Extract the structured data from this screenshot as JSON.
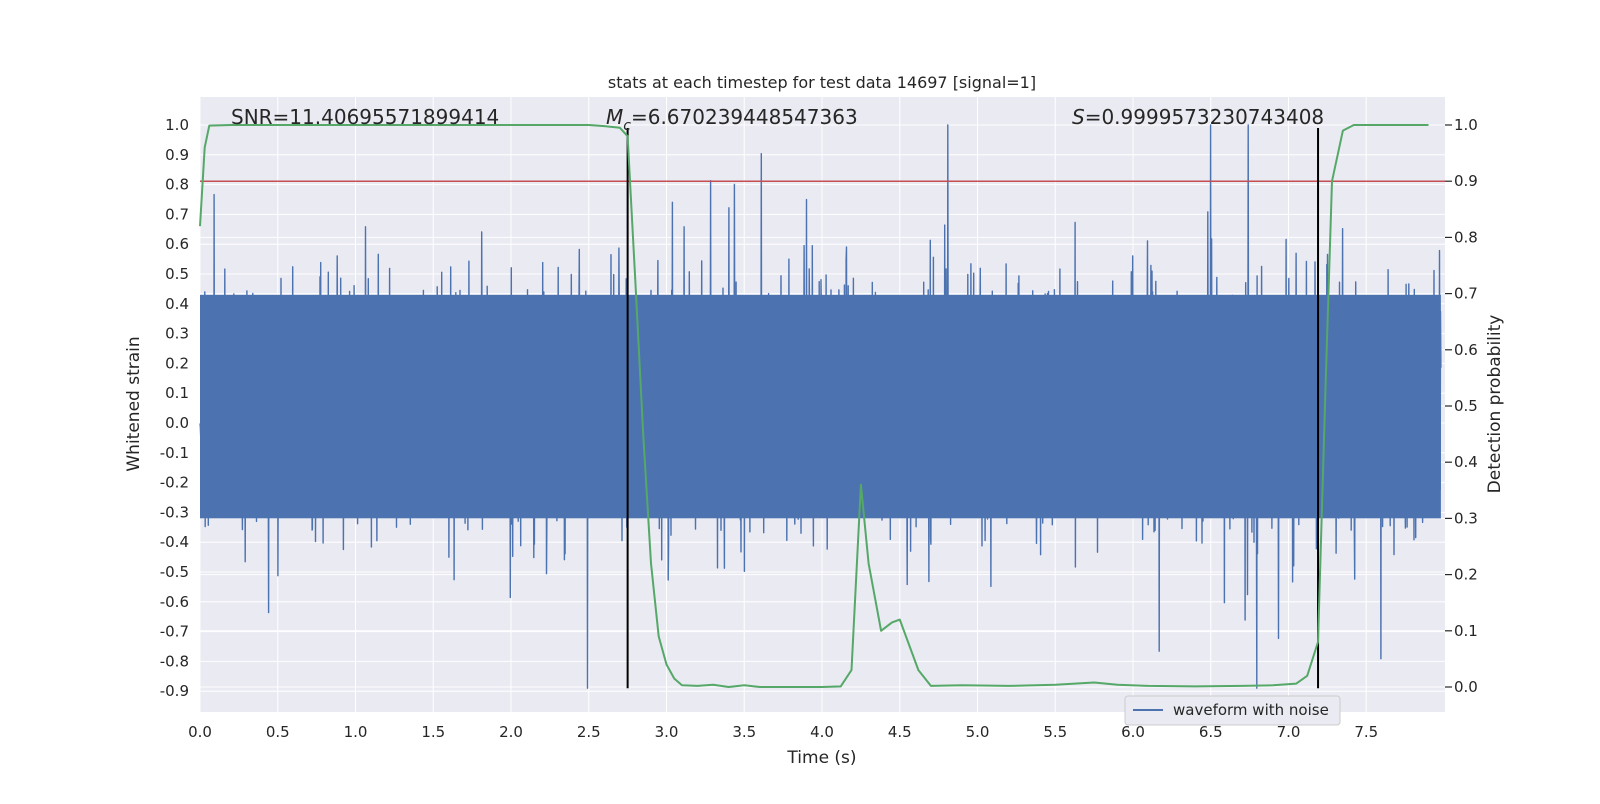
{
  "chart_data": {
    "type": "line",
    "title": "stats at each timestep for test data 14697 [signal=1]",
    "xlabel": "Time (s)",
    "ylabel_left": "Whitened strain",
    "ylabel_right": "Detection probability",
    "xlim": [
      0.0,
      8.0
    ],
    "ylim_left": [
      -0.95,
      1.08
    ],
    "ylim_right": [
      -0.05,
      1.05
    ],
    "x_ticks": [
      "0.0",
      "0.5",
      "1.0",
      "1.5",
      "2.0",
      "2.5",
      "3.0",
      "3.5",
      "4.0",
      "4.5",
      "5.0",
      "5.5",
      "6.0",
      "6.5",
      "7.0",
      "7.5"
    ],
    "y_left_ticks": [
      "1.0",
      "0.9",
      "0.8",
      "0.7",
      "0.6",
      "0.5",
      "0.4",
      "0.3",
      "0.2",
      "0.1",
      "0.0",
      "-0.1",
      "-0.2",
      "-0.3",
      "-0.4",
      "-0.5",
      "-0.6",
      "-0.7",
      "-0.8",
      "-0.9"
    ],
    "y_right_ticks": [
      "1.0",
      "0.9",
      "0.8",
      "0.7",
      "0.6",
      "0.5",
      "0.4",
      "0.3",
      "0.2",
      "0.1",
      "0.0"
    ],
    "grid": true,
    "legend_position": "lower-right",
    "annotations": {
      "snr": "SNR=11.40695571899414",
      "mc_symbol": "M",
      "mc_subscript": "c",
      "mc_value": "=6.670239448547363",
      "s_symbol": "S",
      "s_value": "=0.9999573230743408"
    },
    "series": [
      {
        "name": "waveform with noise",
        "axis": "left",
        "color": "#4c72b0",
        "kind": "noise",
        "t_range": [
          0.0,
          7.98
        ],
        "core_amplitude": [
          -0.32,
          0.43
        ],
        "peak_amplitude": [
          -0.89,
          1.0
        ]
      },
      {
        "axis": "right",
        "color": "#55a868",
        "x": [
          0.0,
          0.03,
          0.06,
          0.2,
          0.5,
          1.0,
          1.5,
          2.0,
          2.5,
          2.6,
          2.7,
          2.75,
          2.8,
          2.85,
          2.9,
          2.95,
          3.0,
          3.05,
          3.1,
          3.2,
          3.3,
          3.4,
          3.5,
          3.6,
          3.8,
          4.0,
          4.12,
          4.19,
          4.25,
          4.3,
          4.38,
          4.45,
          4.5,
          4.56,
          4.62,
          4.7,
          4.9,
          5.2,
          5.5,
          5.75,
          5.9,
          6.1,
          6.4,
          6.7,
          6.9,
          7.05,
          7.12,
          7.19,
          7.24,
          7.28,
          7.35,
          7.42,
          7.9
        ],
        "y": [
          0.82,
          0.96,
          0.999,
          1.0,
          1.0,
          1.0,
          1.0,
          1.0,
          1.0,
          0.998,
          0.995,
          0.98,
          0.72,
          0.45,
          0.22,
          0.09,
          0.04,
          0.015,
          0.003,
          0.002,
          0.004,
          0.0,
          0.003,
          0.0,
          0.0,
          0.0,
          0.001,
          0.03,
          0.36,
          0.22,
          0.1,
          0.115,
          0.12,
          0.075,
          0.03,
          0.002,
          0.003,
          0.002,
          0.004,
          0.008,
          0.004,
          0.002,
          0.001,
          0.002,
          0.003,
          0.006,
          0.02,
          0.08,
          0.55,
          0.9,
          0.99,
          1.0,
          1.0
        ]
      }
    ],
    "threshold_line": {
      "axis": "right",
      "y": 0.9,
      "color": "#c44e52"
    },
    "vertical_markers": {
      "x": [
        2.75,
        7.19
      ],
      "y_range": [
        -0.89,
        0.99
      ],
      "color": "#000000"
    }
  }
}
